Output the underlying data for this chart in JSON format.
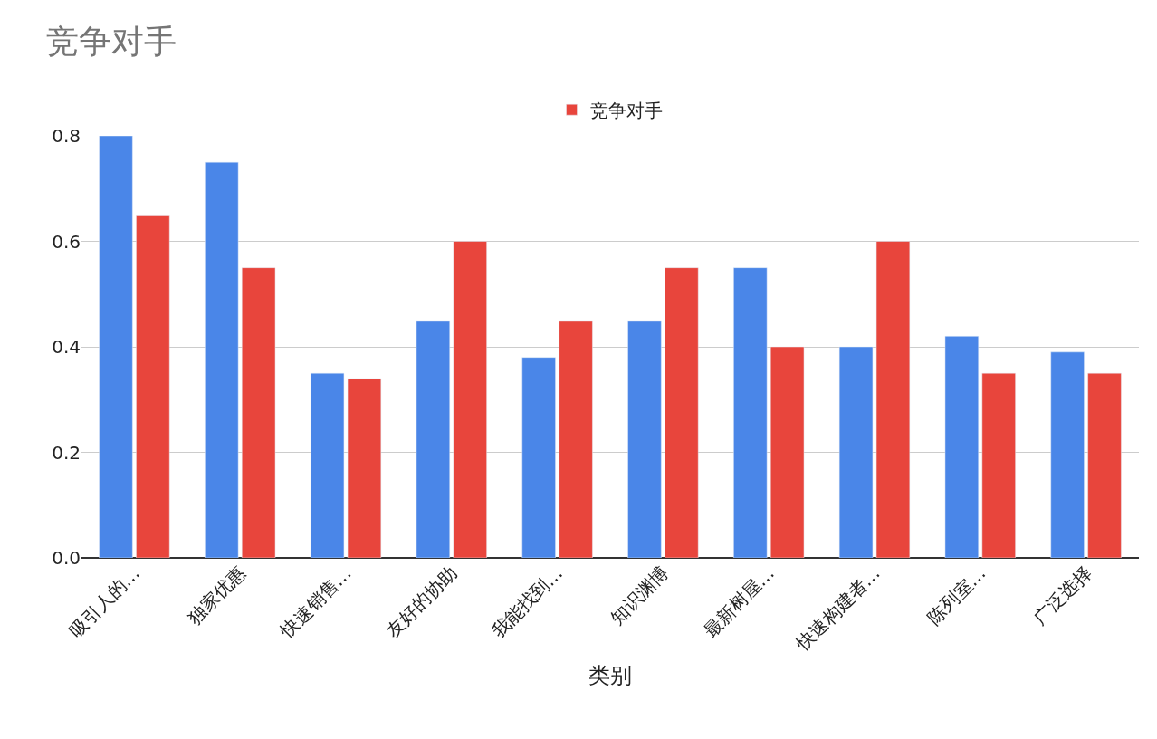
{
  "chart_data": {
    "type": "bar",
    "title": "竞争对手",
    "xlabel": "类别",
    "categories": [
      "吸引人的…",
      "独家优惠",
      "快速销售…",
      "友好的协助",
      "我能找到…",
      "知识渊博",
      "最新树屋…",
      "快速构建者…",
      "陈列室…",
      "广泛选择"
    ],
    "series": [
      {
        "color": "#4a86e8",
        "values": [
          0.8,
          0.75,
          0.35,
          0.45,
          0.38,
          0.45,
          0.55,
          0.4,
          0.42,
          0.39
        ]
      },
      {
        "name": "竞争对手",
        "color": "#e8453c",
        "values": [
          0.65,
          0.55,
          0.34,
          0.6,
          0.45,
          0.55,
          0.4,
          0.6,
          0.35,
          0.35
        ]
      }
    ],
    "ylim": [
      0,
      0.8
    ],
    "yticks": [
      {
        "value": 0,
        "label": "0.0"
      },
      {
        "value": 0.2,
        "label": "0.2"
      },
      {
        "value": 0.4,
        "label": "0.4"
      },
      {
        "value": 0.6,
        "label": "0.6"
      },
      {
        "value": 0.8,
        "label": "0.8"
      }
    ],
    "grid": "y",
    "legend": "top"
  }
}
